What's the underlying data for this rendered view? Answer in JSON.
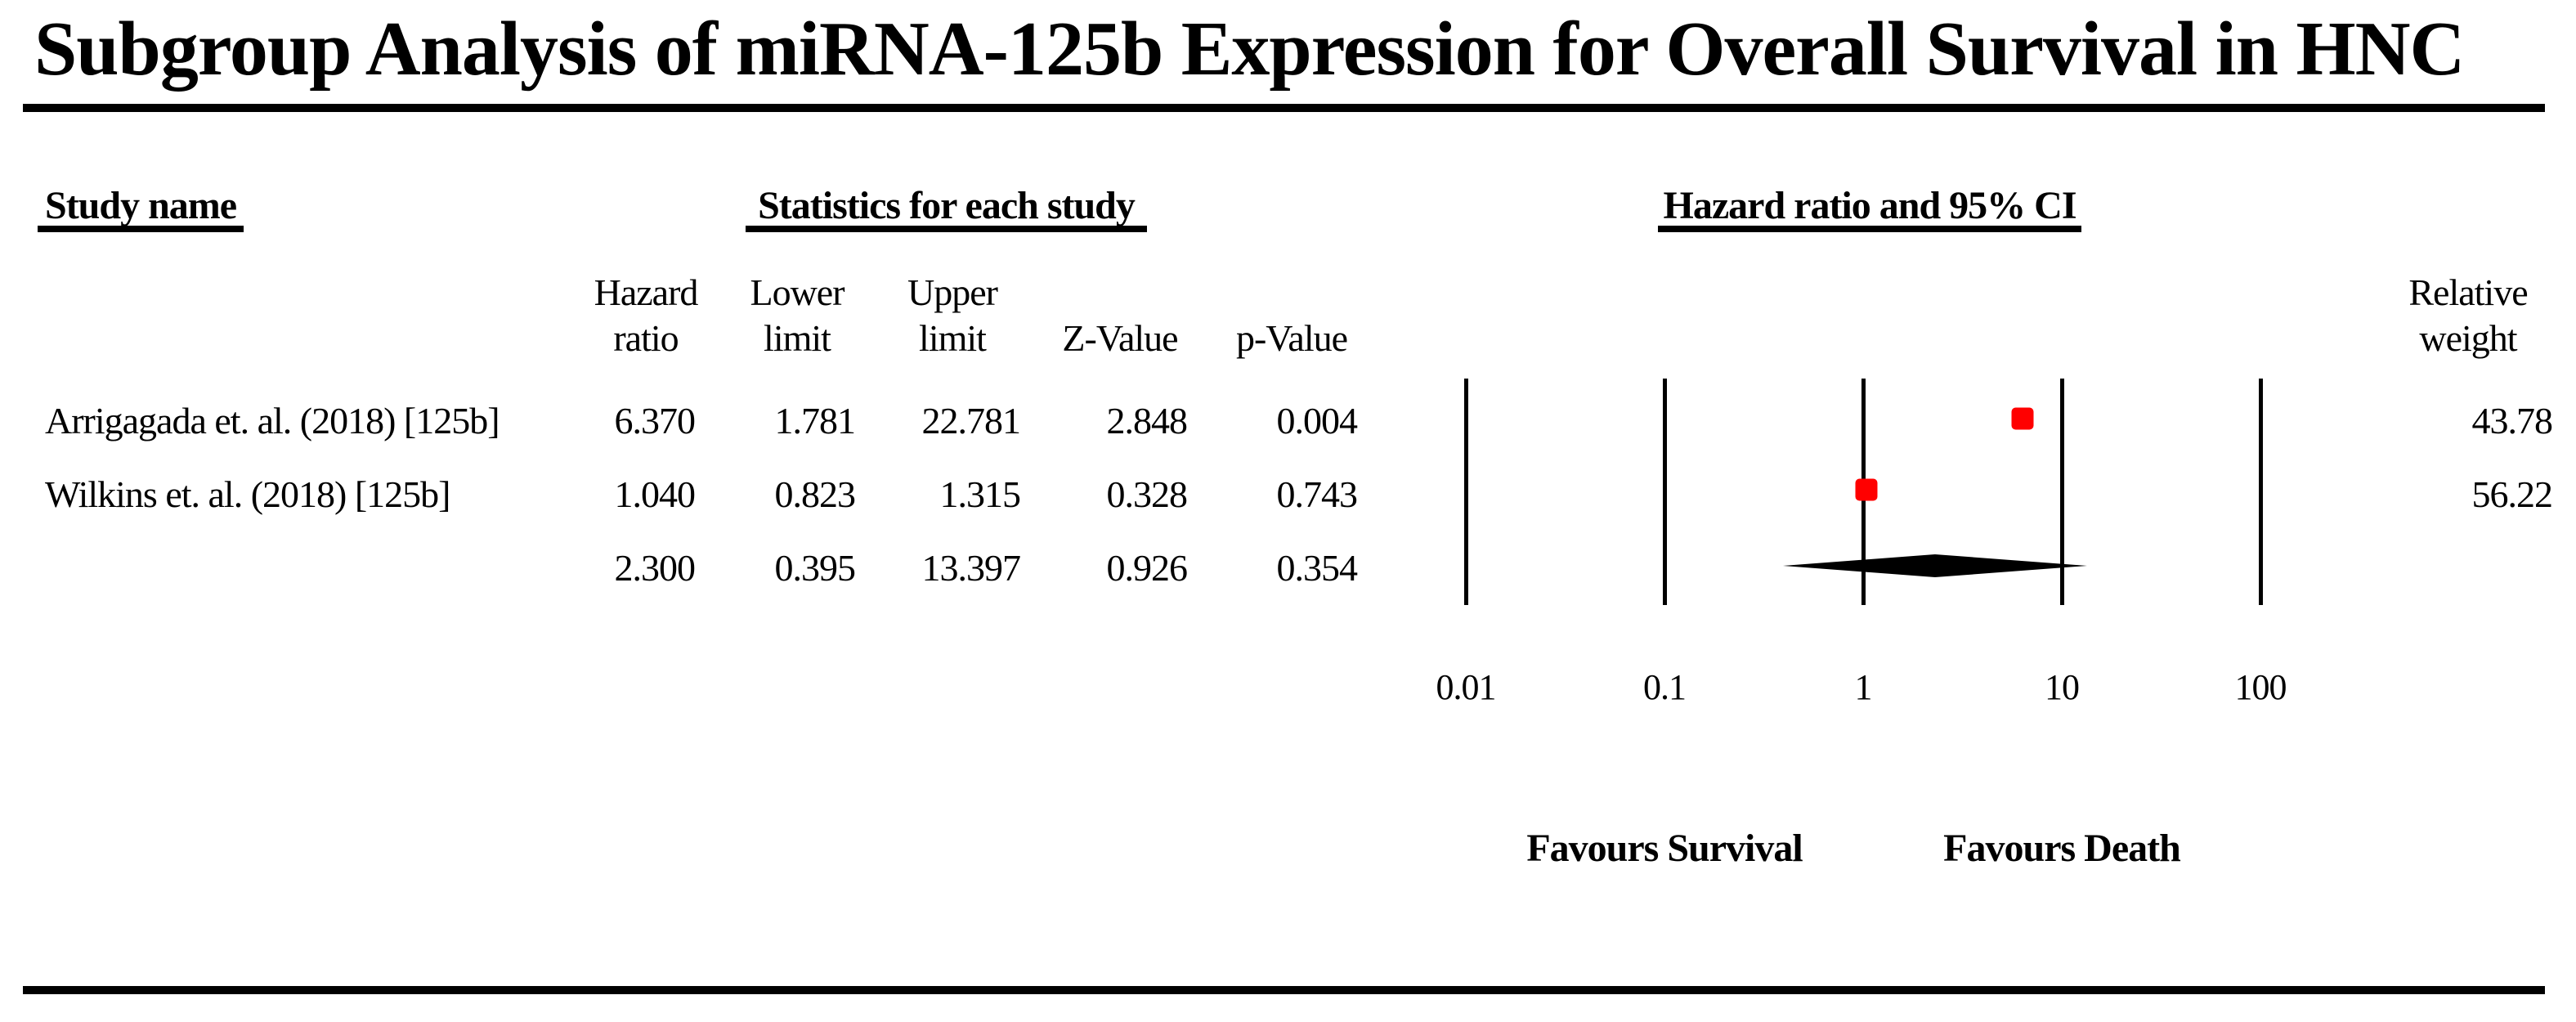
{
  "title": "Subgroup Analysis of miRNA-125b Expression for Overall Survival in HNC",
  "headers": {
    "study": "Study name",
    "stats": "Statistics for each study",
    "plot": "Hazard ratio and 95% CI",
    "columns": {
      "hazard": {
        "line1": "Hazard",
        "line2": "ratio"
      },
      "lower": {
        "line1": "Lower",
        "line2": "limit"
      },
      "upper": {
        "line1": "Upper",
        "line2": "limit"
      },
      "z": {
        "line1": "",
        "line2": "Z-Value"
      },
      "p": {
        "line1": "",
        "line2": "p-Value"
      }
    },
    "weight": {
      "line1": "Relative",
      "line2": "weight"
    }
  },
  "rows": [
    {
      "study": "Arrigagada et. al. (2018) [125b]",
      "hazard_ratio": "6.370",
      "lower_limit": "1.781",
      "upper_limit": "22.781",
      "z_value": "2.848",
      "p_value": "0.004",
      "relative_weight": "43.78"
    },
    {
      "study": "Wilkins et. al. (2018) [125b]",
      "hazard_ratio": "1.040",
      "lower_limit": "0.823",
      "upper_limit": "1.315",
      "z_value": "0.328",
      "p_value": "0.743",
      "relative_weight": "56.22"
    },
    {
      "study": "",
      "hazard_ratio": "2.300",
      "lower_limit": "0.395",
      "upper_limit": "13.397",
      "z_value": "0.926",
      "p_value": "0.354",
      "relative_weight": ""
    }
  ],
  "chart_data": {
    "type": "forest",
    "title": "Subgroup Analysis of miRNA-125b Expression for Overall Survival in HNC",
    "x_scale": "log10",
    "xlim": [
      0.01,
      100
    ],
    "axis_ticks": [
      "0.01",
      "0.1",
      "1",
      "10",
      "100"
    ],
    "series": [
      {
        "name": "Arrigagada et. al. (2018) [125b]",
        "hazard_ratio": 6.37,
        "lower": 1.781,
        "upper": 22.781,
        "z_value": 2.848,
        "p_value": 0.004,
        "weight": 43.78,
        "marker": "square",
        "color": "#ff0000"
      },
      {
        "name": "Wilkins et. al. (2018) [125b]",
        "hazard_ratio": 1.04,
        "lower": 0.823,
        "upper": 1.315,
        "z_value": 0.328,
        "p_value": 0.743,
        "weight": 56.22,
        "marker": "square",
        "color": "#ff0000"
      }
    ],
    "summary": {
      "hazard_ratio": 2.3,
      "lower": 0.395,
      "upper": 13.397,
      "z_value": 0.926,
      "p_value": 0.354,
      "marker": "diamond",
      "color": "#000000"
    },
    "footer_left": "Favours Survival",
    "footer_right": "Favours Death",
    "grid": true,
    "legend": false
  },
  "colors": {
    "background": "#ffffff",
    "text": "#000000",
    "marker": "#ff0000",
    "summary": "#000000"
  }
}
